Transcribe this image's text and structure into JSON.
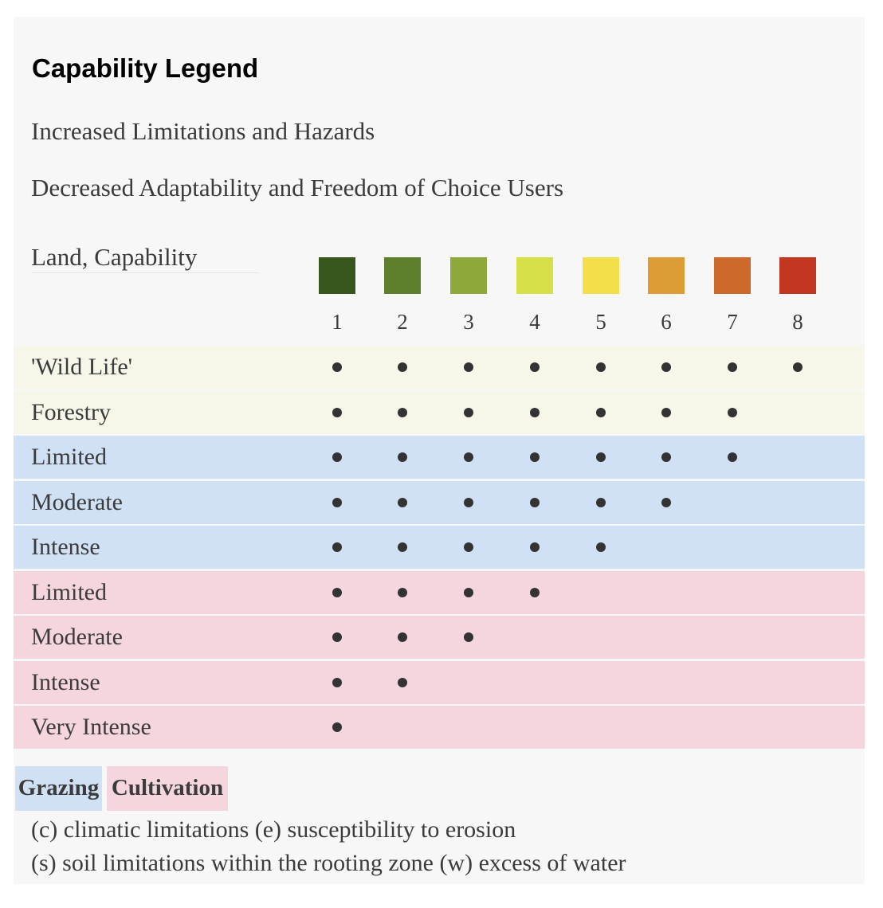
{
  "title": "Capability Legend",
  "subtitle_1": "Increased Limitations and Hazards",
  "subtitle_2": "Decreased Adaptability and Freedom of Choice Users",
  "land_capability_label": "Land, Capability",
  "classes": [
    {
      "number": "1",
      "color": "#36561c"
    },
    {
      "number": "2",
      "color": "#5e7f2c"
    },
    {
      "number": "3",
      "color": "#8ea939"
    },
    {
      "number": "4",
      "color": "#d6e149"
    },
    {
      "number": "5",
      "color": "#f2df4a"
    },
    {
      "number": "6",
      "color": "#dd9d36"
    },
    {
      "number": "7",
      "color": "#cd6a2b"
    },
    {
      "number": "8",
      "color": "#c3361f"
    }
  ],
  "row_colors": {
    "wild": "#f6f7e9",
    "grazing": "#d0e0f5",
    "cultivation": "#f5d5de"
  },
  "rows": [
    {
      "label": "'Wild Life'",
      "group": "wild",
      "max_class": 8
    },
    {
      "label": "Forestry",
      "group": "wild",
      "max_class": 7
    },
    {
      "label": "Limited",
      "group": "grazing",
      "max_class": 7
    },
    {
      "label": "Moderate",
      "group": "grazing",
      "max_class": 6
    },
    {
      "label": "Intense",
      "group": "grazing",
      "max_class": 5
    },
    {
      "label": "Limited",
      "group": "cultivation",
      "max_class": 4
    },
    {
      "label": "Moderate",
      "group": "cultivation",
      "max_class": 3
    },
    {
      "label": "Intense",
      "group": "cultivation",
      "max_class": 2
    },
    {
      "label": "Very Intense",
      "group": "cultivation",
      "max_class": 1
    }
  ],
  "legend": {
    "grazing": "Grazing",
    "cultivation": "Cultivation"
  },
  "notes": [
    "(c) climatic limitations (e) susceptibility to erosion",
    "(s) soil limitations within the rooting zone (w) excess of water"
  ]
}
